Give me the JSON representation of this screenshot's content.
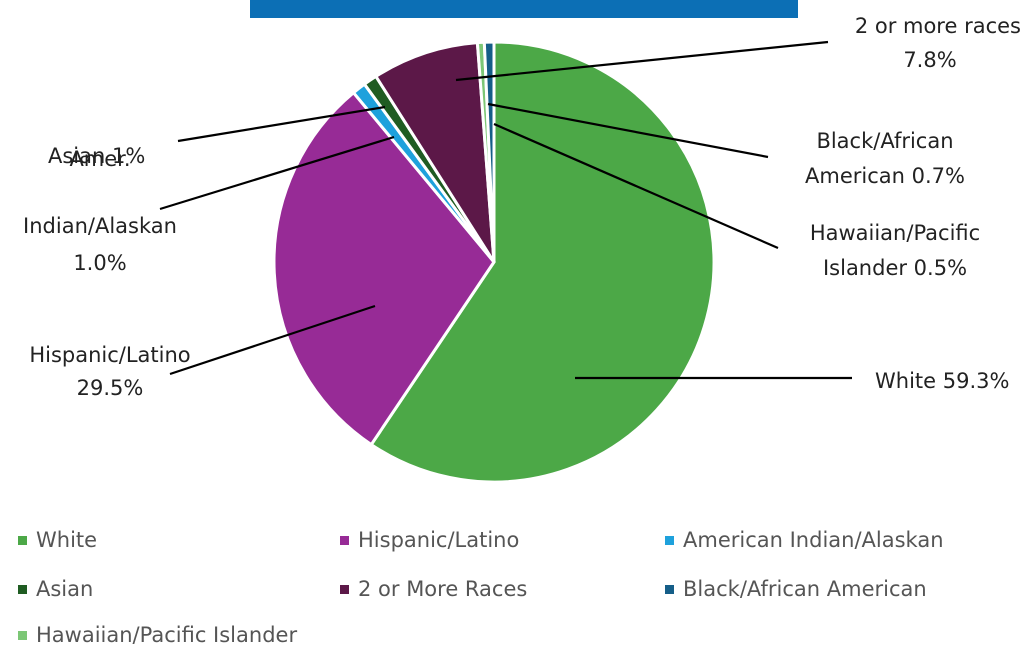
{
  "chart_data": {
    "type": "pie",
    "title": "",
    "slices": [
      {
        "name": "White",
        "value": 59.3,
        "color": "#4ca847",
        "label_lines": [
          "White 59.3%"
        ]
      },
      {
        "name": "Hispanic/Latino",
        "value": 29.5,
        "color": "#972b96",
        "label_lines": [
          "Hispanic/Latino",
          "29.5%"
        ]
      },
      {
        "name": "American Indian/Alaskan",
        "value": 1.0,
        "color": "#1ea1dc",
        "label_lines": [
          "Amer.",
          "Indian/Alaskan",
          "1.0%"
        ]
      },
      {
        "name": "Asian",
        "value": 1.0,
        "color": "#1f5c22",
        "label_lines": [
          "Asian 1%"
        ]
      },
      {
        "name": "2 or More Races",
        "value": 7.8,
        "color": "#5c1848",
        "label_lines": [
          "2 or more races",
          "7.8%"
        ]
      },
      {
        "name": "Black/African American",
        "value": 0.7,
        "color": "#155e88",
        "label_lines": [
          "Black/African",
          "American 0.7%"
        ]
      },
      {
        "name": "Hawaiian/Pacific Islander",
        "value": 0.5,
        "color": "#7cc776",
        "label_lines": [
          "Hawaiian/Pacific",
          "Islander 0.5%"
        ]
      }
    ],
    "legend": {
      "placement": "bottom",
      "entries": [
        "White",
        "Hispanic/Latino",
        "American Indian/Alaskan",
        "Asian",
        "2 or More Races",
        "Black/African American",
        "Hawaiian/Pacific Islander"
      ]
    }
  }
}
